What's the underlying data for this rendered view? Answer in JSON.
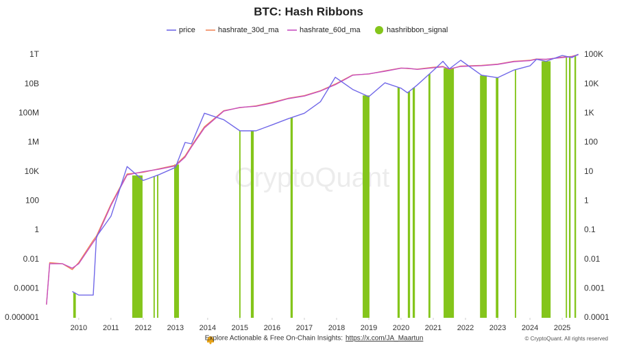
{
  "chart_data": {
    "type": "line",
    "title": "BTC: Hash Ribbons",
    "log_scale": true,
    "x": [
      2009.0,
      2009.1,
      2009.5,
      2009.8,
      2010.0,
      2010.45,
      2010.55,
      2011.0,
      2011.5,
      2012.0,
      2012.5,
      2013.0,
      2013.3,
      2013.5,
      2013.9,
      2014.5,
      2015.0,
      2015.5,
      2016.0,
      2016.5,
      2017.0,
      2017.5,
      2017.96,
      2018.5,
      2019.0,
      2019.5,
      2020.0,
      2020.2,
      2020.5,
      2021.0,
      2021.3,
      2021.5,
      2021.85,
      2022.5,
      2023.0,
      2023.5,
      2024.0,
      2024.2,
      2024.5,
      2025.0,
      2025.3,
      2025.5
    ],
    "xlim": [
      2008.94,
      2025.53
    ],
    "xticks": [
      2010,
      2011,
      2012,
      2013,
      2014,
      2015,
      2016,
      2017,
      2018,
      2019,
      2020,
      2021,
      2022,
      2023,
      2024,
      2025
    ],
    "ylim": [
      1e-06,
      1000000000000
    ],
    "yticks": [
      1e-06,
      0.0001,
      0.01,
      1,
      100,
      {
        "value": 10000,
        "label": "10K"
      },
      {
        "value": 1000000,
        "label": "1M"
      },
      {
        "value": 100000000,
        "label": "100M"
      },
      {
        "value": 10000000000,
        "label": "10B"
      },
      {
        "value": 1000000000000,
        "label": "1T"
      }
    ],
    "y2lim": [
      0.0001,
      100000
    ],
    "y2ticks": [
      0.0001,
      0.001,
      0.01,
      0.1,
      1,
      10,
      100,
      {
        "value": 1000,
        "label": "1K"
      },
      {
        "value": 10000,
        "label": "10K"
      },
      {
        "value": 100000,
        "label": "100K"
      }
    ],
    "series": [
      {
        "name": "price",
        "color": "#7067e8",
        "axis": "y2",
        "values": [
          null,
          null,
          null,
          0.0008,
          0.0006,
          0.0006,
          0.06,
          0.3,
          15,
          5,
          8,
          14,
          100,
          90,
          1000,
          600,
          250,
          250,
          400,
          650,
          1000,
          2500,
          17000,
          6500,
          3700,
          11000,
          7200,
          5000,
          9200,
          29000,
          60000,
          33000,
          65000,
          20000,
          16500,
          30000,
          42000,
          70000,
          60000,
          95000,
          80000,
          105000
        ]
      },
      {
        "name": "hashrate_30d_ma",
        "color": "#f0875a",
        "values": [
          8e-06,
          0.006,
          0.005,
          0.002,
          0.006,
          0.2,
          0.4,
          60,
          7000,
          9000,
          16000,
          28000,
          120000,
          600000,
          12000000,
          150000000,
          240000000,
          320000000,
          550000000,
          1050000000,
          1600000000,
          3500000000,
          10000000000,
          42000000000,
          48000000000,
          80000000000,
          125000000000,
          115000000000,
          105000000000,
          140000000000,
          160000000000,
          100000000000,
          170000000000,
          190000000000,
          230000000000,
          360000000000,
          420000000000,
          520000000000,
          480000000000,
          700000000000,
          780000000000,
          1050000000000
        ]
      },
      {
        "name": "hashrate_60d_ma",
        "color": "#c64fc0",
        "values": [
          8e-06,
          0.005,
          0.005,
          0.0025,
          0.005,
          0.15,
          0.3,
          50,
          6000,
          10000,
          15000,
          25000,
          100000,
          500000,
          10000000,
          140000000,
          250000000,
          300000000,
          500000000,
          1000000000,
          1500000000,
          3300000000,
          9000000000,
          40000000000,
          50000000000,
          75000000000,
          120000000000,
          120000000000,
          100000000000,
          130000000000,
          150000000000,
          110000000000,
          160000000000,
          180000000000,
          220000000000,
          340000000000,
          400000000000,
          500000000000,
          500000000000,
          650000000000,
          750000000000,
          1000000000000
        ]
      },
      {
        "name": "hashribbon_signal",
        "color": "#84c51b",
        "type": "bar",
        "periods": [
          [
            2009.83,
            2009.91
          ],
          [
            2011.66,
            2011.98
          ],
          [
            2012.32,
            2012.36
          ],
          [
            2012.43,
            2012.47
          ],
          [
            2012.96,
            2013.11
          ],
          [
            2014.98,
            2015.02
          ],
          [
            2015.34,
            2015.43
          ],
          [
            2016.57,
            2016.64
          ],
          [
            2018.81,
            2019.02
          ],
          [
            2019.89,
            2019.96
          ],
          [
            2020.21,
            2020.28
          ],
          [
            2020.36,
            2020.43
          ],
          [
            2020.85,
            2020.91
          ],
          [
            2021.32,
            2021.64
          ],
          [
            2022.45,
            2022.66
          ],
          [
            2022.94,
            2023.02
          ],
          [
            2023.53,
            2023.57
          ],
          [
            2024.36,
            2024.64
          ],
          [
            2025.11,
            2025.15
          ],
          [
            2025.21,
            2025.26
          ],
          [
            2025.38,
            2025.43
          ]
        ]
      }
    ]
  },
  "watermark": "CryptoQuant",
  "footer": {
    "text": "Explore Actionable & Free On-Chain Insights:",
    "link": "https://x.com/JA_Maartun"
  },
  "copyright": "© CryptoQuant. All rights reserved"
}
